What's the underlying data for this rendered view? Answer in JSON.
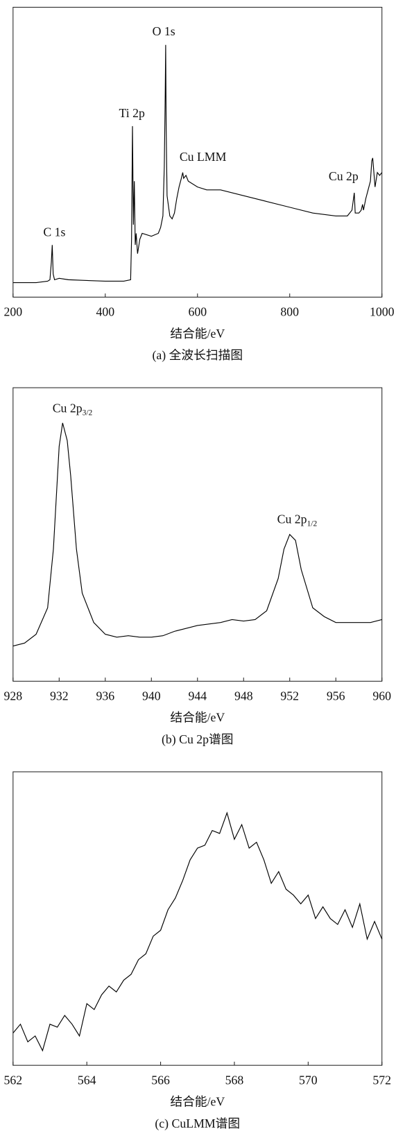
{
  "chart_data": [
    {
      "type": "line",
      "x_label": "结合能/eV",
      "caption": "(a) 全波长扫描图",
      "color": "#000000",
      "xlim": [
        200,
        1000
      ],
      "xticks": [
        200,
        400,
        600,
        800,
        1000
      ],
      "ylim": [
        0,
        100
      ],
      "annotations": [
        {
          "text": "O 1s"
        },
        {
          "text": "Ti 2p"
        },
        {
          "text": "Cu LMM"
        },
        {
          "text": "C 1s"
        },
        {
          "text": "Cu 2p"
        }
      ],
      "x": [
        200,
        250,
        275,
        280,
        283,
        285,
        287,
        290,
        300,
        320,
        350,
        400,
        440,
        455,
        457,
        459,
        461,
        463,
        465,
        467,
        470,
        475,
        480,
        500,
        515,
        520,
        525,
        528,
        530,
        531,
        532,
        534,
        540,
        545,
        550,
        555,
        560,
        565,
        568,
        570,
        575,
        580,
        600,
        620,
        650,
        700,
        750,
        800,
        850,
        900,
        925,
        935,
        940,
        942,
        950,
        955,
        958,
        960,
        965,
        970,
        975,
        978,
        980,
        982,
        985,
        990,
        995,
        1000
      ],
      "values": [
        5,
        5,
        5.5,
        6,
        12,
        18,
        8,
        6,
        6.5,
        6,
        5.8,
        5.5,
        5.5,
        6,
        20,
        59,
        25,
        40,
        18,
        22,
        15,
        20,
        22,
        21,
        22,
        24,
        28,
        45,
        70,
        87,
        60,
        35,
        28,
        27,
        29,
        34,
        38,
        41,
        43,
        41,
        42,
        40,
        38,
        37,
        37,
        35,
        33,
        31,
        29,
        28,
        28,
        30,
        36,
        29,
        29,
        30,
        32,
        30,
        34,
        37,
        40,
        47,
        48,
        44,
        38,
        43,
        42,
        43
      ]
    },
    {
      "type": "line",
      "x_label": "结合能/eV",
      "caption": "(b) Cu 2p谱图",
      "color": "#000000",
      "xlim": [
        928,
        960
      ],
      "xticks": [
        928,
        932,
        936,
        940,
        944,
        948,
        952,
        956,
        960
      ],
      "ylim": [
        0,
        100
      ],
      "annotations": [
        {
          "text": "Cu 2p",
          "sub": "3/2"
        },
        {
          "text": "Cu 2p",
          "sub": "1/2"
        }
      ],
      "x": [
        928,
        929,
        930,
        931,
        931.5,
        932,
        932.3,
        932.7,
        933,
        933.5,
        934,
        935,
        936,
        937,
        938,
        939,
        940,
        941,
        942,
        943,
        944,
        945,
        946,
        947,
        948,
        949,
        950,
        951,
        951.5,
        952,
        952.5,
        953,
        954,
        955,
        956,
        957,
        958,
        959,
        960
      ],
      "values": [
        12,
        13,
        16,
        25,
        45,
        80,
        88,
        82,
        70,
        45,
        30,
        20,
        16,
        15,
        15.5,
        15,
        15,
        15.5,
        17,
        18,
        19,
        19.5,
        20,
        21,
        20.5,
        21,
        24,
        35,
        45,
        50,
        48,
        38,
        25,
        22,
        20,
        20,
        20,
        20,
        21
      ]
    },
    {
      "type": "line",
      "x_label": "结合能/eV",
      "caption": "(c) CuLMM谱图",
      "color": "#000000",
      "xlim": [
        562,
        572
      ],
      "xticks": [
        562,
        564,
        566,
        568,
        570,
        572
      ],
      "ylim": [
        0,
        100
      ],
      "annotations": [],
      "x": [
        562,
        562.2,
        562.4,
        562.6,
        562.8,
        563,
        563.2,
        563.4,
        563.6,
        563.8,
        564,
        564.2,
        564.4,
        564.6,
        564.8,
        565,
        565.2,
        565.4,
        565.6,
        565.8,
        566,
        566.2,
        566.4,
        566.6,
        566.8,
        567,
        567.2,
        567.4,
        567.6,
        567.8,
        568,
        568.2,
        568.4,
        568.6,
        568.8,
        569,
        569.2,
        569.4,
        569.6,
        569.8,
        570,
        570.2,
        570.4,
        570.6,
        570.8,
        571,
        571.2,
        571.4,
        571.6,
        571.8,
        572
      ],
      "values": [
        11,
        14,
        8,
        10,
        5,
        14,
        13,
        17,
        14,
        10,
        21,
        19,
        24,
        27,
        25,
        29,
        31,
        36,
        38,
        44,
        46,
        53,
        57,
        63,
        70,
        74,
        75,
        80,
        79,
        86,
        77,
        82,
        74,
        76,
        70,
        62,
        66,
        60,
        58,
        55,
        58,
        50,
        54,
        50,
        48,
        53,
        47,
        55,
        43,
        49,
        43
      ]
    }
  ]
}
